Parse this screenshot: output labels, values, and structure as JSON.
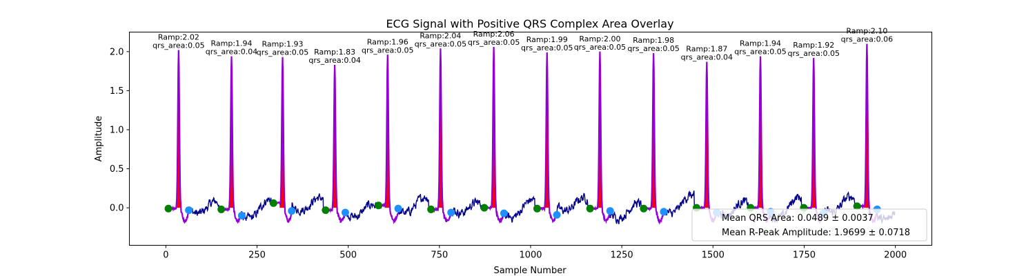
{
  "chart_data": {
    "type": "line",
    "title": "ECG Signal with Positive QRS Complex Area Overlay",
    "xlabel": "Sample Number",
    "ylabel": "Amplitude",
    "xlim": [
      -100,
      2100
    ],
    "ylim": [
      -0.48,
      2.25
    ],
    "x_ticks": [
      0,
      250,
      500,
      750,
      1000,
      1250,
      1500,
      1750,
      2000
    ],
    "y_ticks": [
      0.0,
      0.5,
      1.0,
      1.5,
      2.0
    ],
    "x_tick_labels": [
      "0",
      "250",
      "500",
      "750",
      "1000",
      "1250",
      "1500",
      "1750",
      "2000"
    ],
    "y_tick_labels": [
      "0.0",
      "0.5",
      "1.0",
      "1.5",
      "2.0"
    ],
    "grid": false,
    "legend_position": "lower-right",
    "n_samples": 2000,
    "colors": {
      "signal": "#00008b",
      "qrs_overlay": "#9400d3",
      "qrs_area": "#ff0000",
      "q_point": "#008000",
      "s_point": "#1e90ff"
    },
    "beats": [
      {
        "r_sample": 35,
        "r_amp": 2.02,
        "qrs_area": 0.05,
        "q_sample": 7,
        "q_amp": -0.01,
        "s_sample": 63,
        "s_amp": -0.03,
        "label_ramp": "Ramp:2.02",
        "label_area": "qrs_area:0.05"
      },
      {
        "r_sample": 180,
        "r_amp": 1.94,
        "qrs_area": 0.04,
        "q_sample": 152,
        "q_amp": -0.02,
        "s_sample": 208,
        "s_amp": -0.1,
        "label_ramp": "Ramp:1.94",
        "label_area": "qrs_area:0.04"
      },
      {
        "r_sample": 320,
        "r_amp": 1.93,
        "qrs_area": 0.05,
        "q_sample": 295,
        "q_amp": 0.06,
        "s_sample": 345,
        "s_amp": -0.04,
        "label_ramp": "Ramp:1.93",
        "label_area": "qrs_area:0.05"
      },
      {
        "r_sample": 463,
        "r_amp": 1.83,
        "qrs_area": 0.04,
        "q_sample": 438,
        "q_amp": -0.03,
        "s_sample": 492,
        "s_amp": -0.06,
        "label_ramp": "Ramp:1.83",
        "label_area": "qrs_area:0.04"
      },
      {
        "r_sample": 608,
        "r_amp": 1.96,
        "qrs_area": 0.05,
        "q_sample": 583,
        "q_amp": 0.03,
        "s_sample": 637,
        "s_amp": -0.01,
        "label_ramp": "Ramp:1.96",
        "label_area": "qrs_area:0.05"
      },
      {
        "r_sample": 753,
        "r_amp": 2.04,
        "qrs_area": 0.05,
        "q_sample": 727,
        "q_amp": -0.02,
        "s_sample": 782,
        "s_amp": -0.06,
        "label_ramp": "Ramp:2.04",
        "label_area": "qrs_area:0.05"
      },
      {
        "r_sample": 899,
        "r_amp": 2.06,
        "qrs_area": 0.05,
        "q_sample": 873,
        "q_amp": 0.0,
        "s_sample": 927,
        "s_amp": -0.07,
        "label_ramp": "Ramp:2.06",
        "label_area": "qrs_area:0.05"
      },
      {
        "r_sample": 1045,
        "r_amp": 1.99,
        "qrs_area": 0.05,
        "q_sample": 1018,
        "q_amp": -0.01,
        "s_sample": 1072,
        "s_amp": -0.09,
        "label_ramp": "Ramp:1.99",
        "label_area": "qrs_area:0.05"
      },
      {
        "r_sample": 1190,
        "r_amp": 2.0,
        "qrs_area": 0.05,
        "q_sample": 1163,
        "q_amp": -0.01,
        "s_sample": 1218,
        "s_amp": -0.04,
        "label_ramp": "Ramp:2.00",
        "label_area": "qrs_area:0.05"
      },
      {
        "r_sample": 1337,
        "r_amp": 1.98,
        "qrs_area": 0.05,
        "q_sample": 1310,
        "q_amp": -0.01,
        "s_sample": 1365,
        "s_amp": -0.05,
        "label_ramp": "Ramp:1.98",
        "label_area": "qrs_area:0.05"
      },
      {
        "r_sample": 1483,
        "r_amp": 1.87,
        "qrs_area": 0.04,
        "q_sample": 1455,
        "q_amp": 0.0,
        "s_sample": 1510,
        "s_amp": -0.06,
        "label_ramp": "Ramp:1.87",
        "label_area": "qrs_area:0.04"
      },
      {
        "r_sample": 1630,
        "r_amp": 1.94,
        "qrs_area": 0.05,
        "q_sample": 1603,
        "q_amp": 0.0,
        "s_sample": 1658,
        "s_amp": -0.05,
        "label_ramp": "Ramp:1.94",
        "label_area": "qrs_area:0.05"
      },
      {
        "r_sample": 1776,
        "r_amp": 1.92,
        "qrs_area": 0.05,
        "q_sample": 1749,
        "q_amp": 0.0,
        "s_sample": 1803,
        "s_amp": -0.07,
        "label_ramp": "Ramp:1.92",
        "label_area": "qrs_area:0.05"
      },
      {
        "r_sample": 1922,
        "r_amp": 2.1,
        "qrs_area": 0.06,
        "q_sample": 1895,
        "q_amp": 0.02,
        "s_sample": 1950,
        "s_amp": -0.02,
        "label_ramp": "Ramp:2.10",
        "label_area": "qrs_area:0.06"
      }
    ],
    "legend": {
      "entries": [
        "Mean QRS Area: 0.0489 ± 0.0037",
        "Mean R-Peak Amplitude: 1.9699 ± 0.0718"
      ]
    }
  }
}
